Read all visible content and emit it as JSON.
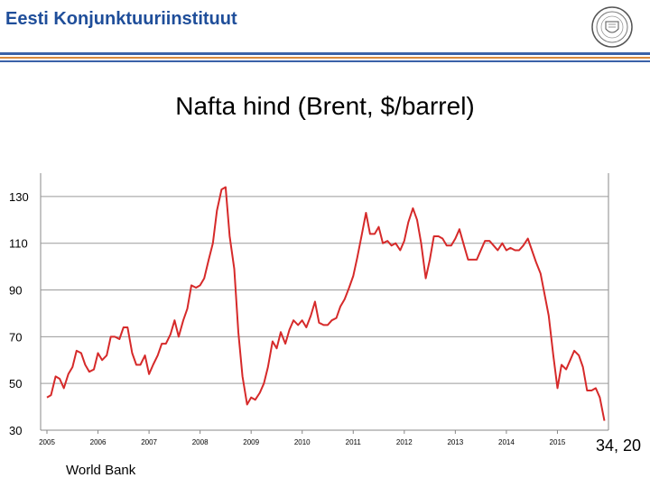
{
  "header": {
    "title": "Eesti Konjunktuuriinstituut",
    "accent_blue": "#3a62a8",
    "accent_orange": "#d98a3c",
    "logo_icon": "seal-icon"
  },
  "chart_data": {
    "type": "line",
    "title": "Nafta hind (Brent, $/barrel)",
    "xlabel": "",
    "ylabel": "",
    "xlim": [
      2005,
      2016.0
    ],
    "ylim": [
      30,
      140
    ],
    "yticks": [
      130,
      110,
      90,
      70,
      50,
      30
    ],
    "xticks": [
      "2005",
      "2006",
      "2007",
      "2008",
      "2009",
      "2010",
      "2011",
      "2012",
      "2013",
      "2014",
      "2015"
    ],
    "grid": true,
    "line_color": "#d62a2a",
    "series": [
      {
        "name": "Brent",
        "x": [
          2005.0,
          2005.08,
          2005.17,
          2005.25,
          2005.33,
          2005.42,
          2005.5,
          2005.58,
          2005.67,
          2005.75,
          2005.83,
          2005.92,
          2006.0,
          2006.08,
          2006.17,
          2006.25,
          2006.33,
          2006.42,
          2006.5,
          2006.58,
          2006.67,
          2006.75,
          2006.83,
          2006.92,
          2007.0,
          2007.08,
          2007.17,
          2007.25,
          2007.33,
          2007.42,
          2007.5,
          2007.58,
          2007.67,
          2007.75,
          2007.83,
          2007.92,
          2008.0,
          2008.08,
          2008.17,
          2008.25,
          2008.33,
          2008.42,
          2008.5,
          2008.58,
          2008.67,
          2008.75,
          2008.83,
          2008.92,
          2009.0,
          2009.08,
          2009.17,
          2009.25,
          2009.33,
          2009.42,
          2009.5,
          2009.58,
          2009.67,
          2009.75,
          2009.83,
          2009.92,
          2010.0,
          2010.08,
          2010.17,
          2010.25,
          2010.33,
          2010.42,
          2010.5,
          2010.58,
          2010.67,
          2010.75,
          2010.83,
          2010.92,
          2011.0,
          2011.08,
          2011.17,
          2011.25,
          2011.33,
          2011.42,
          2011.5,
          2011.58,
          2011.67,
          2011.75,
          2011.83,
          2011.92,
          2012.0,
          2012.08,
          2012.17,
          2012.25,
          2012.33,
          2012.42,
          2012.5,
          2012.58,
          2012.67,
          2012.75,
          2012.83,
          2012.92,
          2013.0,
          2013.08,
          2013.17,
          2013.25,
          2013.33,
          2013.42,
          2013.5,
          2013.58,
          2013.67,
          2013.75,
          2013.83,
          2013.92,
          2014.0,
          2014.08,
          2014.17,
          2014.25,
          2014.33,
          2014.42,
          2014.5,
          2014.58,
          2014.67,
          2014.75,
          2014.83,
          2014.92,
          2015.0,
          2015.08,
          2015.17,
          2015.25,
          2015.33,
          2015.42,
          2015.5,
          2015.58,
          2015.67,
          2015.75,
          2015.83,
          2015.92
        ],
        "values": [
          44,
          45,
          53,
          52,
          48,
          54,
          57,
          64,
          63,
          58,
          55,
          56,
          63,
          60,
          62,
          70,
          70,
          69,
          74,
          74,
          63,
          58,
          58,
          62,
          54,
          58,
          62,
          67,
          67,
          71,
          77,
          70,
          77,
          82,
          92,
          91,
          92,
          95,
          103,
          110,
          124,
          133,
          134,
          113,
          99,
          72,
          53,
          41,
          44,
          43,
          46,
          50,
          57,
          68,
          65,
          72,
          67,
          73,
          77,
          75,
          77,
          74,
          79,
          85,
          76,
          75,
          75,
          77,
          78,
          83,
          86,
          91,
          96,
          104,
          114,
          123,
          114,
          114,
          117,
          110,
          111,
          109,
          110,
          107,
          111,
          119,
          125,
          120,
          110,
          95,
          103,
          113,
          113,
          112,
          109,
          109,
          112,
          116,
          109,
          103,
          103,
          103,
          107,
          111,
          111,
          109,
          107,
          110,
          107,
          108,
          107,
          107,
          109,
          112,
          107,
          102,
          97,
          88,
          79,
          62,
          48,
          58,
          56,
          60,
          64,
          62,
          57,
          47,
          47,
          48,
          44,
          34
        ]
      }
    ],
    "last_value_label": "34, 20",
    "source": "World Bank"
  }
}
